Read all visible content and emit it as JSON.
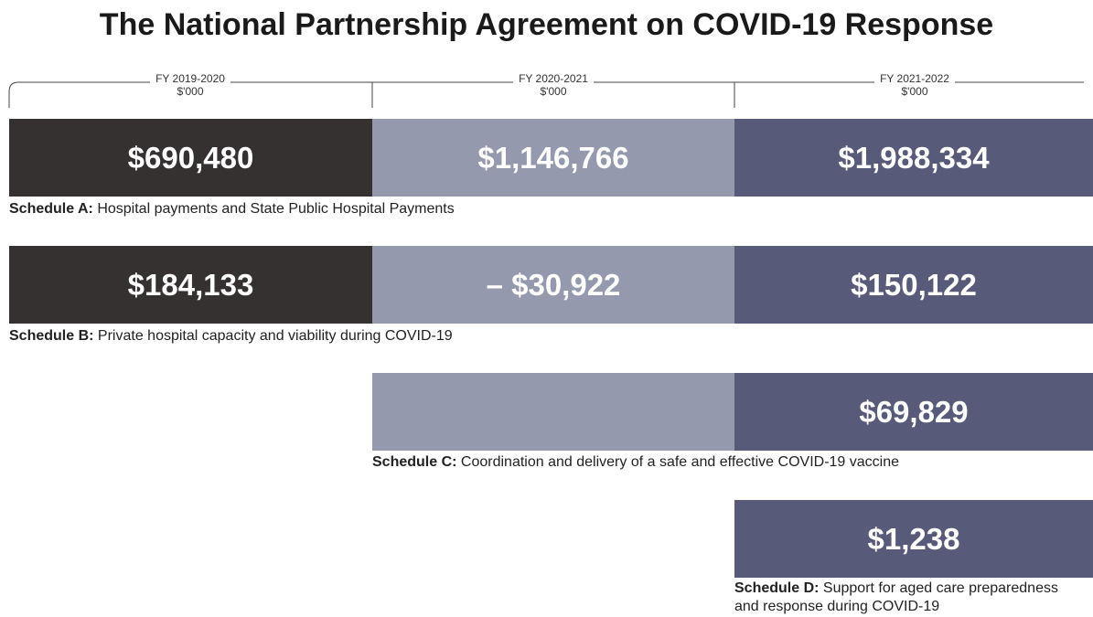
{
  "title": "The National Partnership Agreement on COVID-19 Response",
  "columns": [
    {
      "fy": "FY 2019-2020",
      "unit": "$'000"
    },
    {
      "fy": "FY 2020-2021",
      "unit": "$'000"
    },
    {
      "fy": "FY 2021-2022",
      "unit": "$'000"
    }
  ],
  "schedules": [
    {
      "label": "Schedule A:",
      "description": "Hospital payments and State Public Hospital Payments",
      "cells": [
        "$690,480",
        "$1,146,766",
        "$1,988,334"
      ]
    },
    {
      "label": "Schedule B:",
      "description": "Private hospital capacity and viability during COVID-19",
      "cells": [
        "$184,133",
        "– $30,922",
        "$150,122"
      ]
    },
    {
      "label": "Schedule C:",
      "description": "Coordination and delivery of a safe and effective COVID-19 vaccine",
      "cells": [
        null,
        null,
        "$69,829"
      ]
    },
    {
      "label": "Schedule D:",
      "description": "Support for aged care preparedness and response during COVID-19",
      "cells": [
        null,
        null,
        "$1,238"
      ]
    }
  ]
}
